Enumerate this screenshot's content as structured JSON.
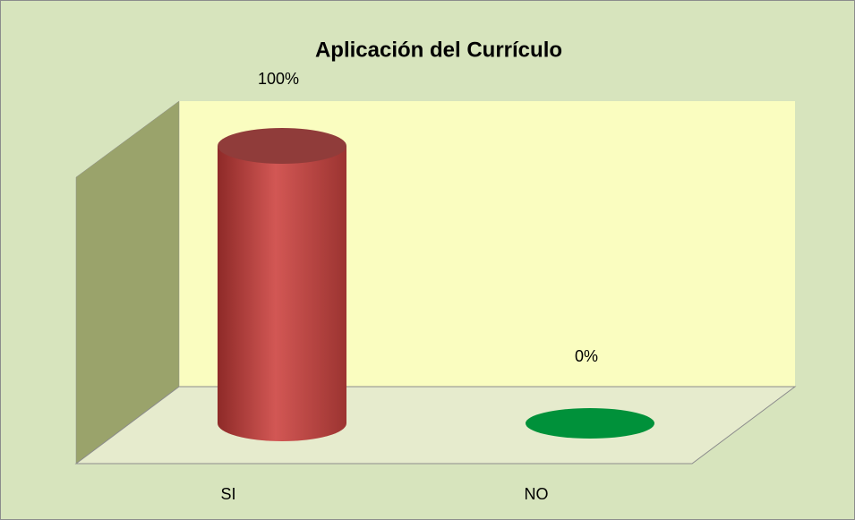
{
  "chart_data": {
    "type": "bar3d",
    "title": "Aplicación del Currículo",
    "categories": [
      "SI",
      "NO"
    ],
    "values": [
      100,
      0
    ],
    "value_labels": [
      "100%",
      "0%"
    ],
    "colors": [
      "#c0504d",
      "#00913a"
    ],
    "ylim": [
      0,
      100
    ]
  }
}
